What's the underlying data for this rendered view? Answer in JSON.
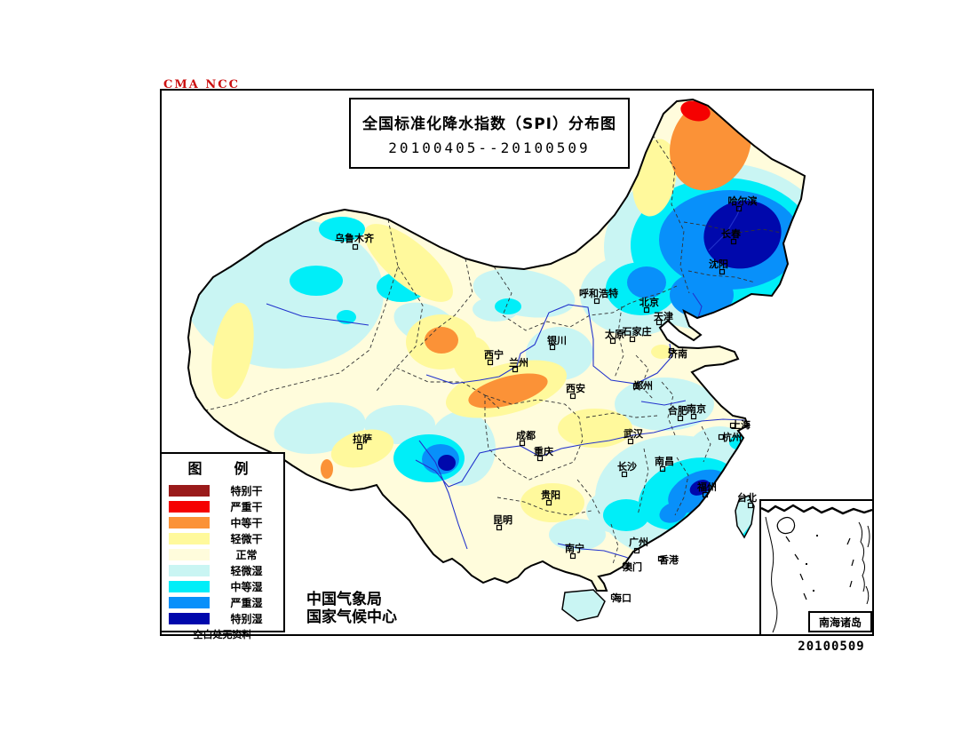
{
  "watermark": "CMA NCC",
  "title": {
    "line1": "全国标准化降水指数（SPI）分布图",
    "line2": "20100405--20100509"
  },
  "agency": {
    "line1": "中国气象局",
    "line2": "国家气候中心"
  },
  "date_stamp": "20100509",
  "inset": {
    "label": "南海诸岛"
  },
  "legend": {
    "title": "图　例",
    "footnote": "空白处无资料",
    "items": [
      {
        "label": "特别干",
        "color_key": "d4"
      },
      {
        "label": "严重干",
        "color_key": "d3"
      },
      {
        "label": "中等干",
        "color_key": "d2"
      },
      {
        "label": "轻微干",
        "color_key": "d1"
      },
      {
        "label": "正常",
        "color_key": "n"
      },
      {
        "label": "轻微湿",
        "color_key": "w1"
      },
      {
        "label": "中等湿",
        "color_key": "w2"
      },
      {
        "label": "严重湿",
        "color_key": "w3"
      },
      {
        "label": "特别湿",
        "color_key": "w4"
      }
    ]
  },
  "map": {
    "colors": {
      "d4": "#9A1A1A",
      "d3": "#F50101",
      "d2": "#FB9237",
      "d1": "#FFF99C",
      "n": "#FFFCDC",
      "w1": "#C9F5F3",
      "w2": "#00EEF8",
      "w3": "#0890FA",
      "w4": "#0008AC"
    },
    "category_names": {
      "d4": "特别干",
      "d3": "严重干",
      "d2": "中等干",
      "d1": "轻微干",
      "n": "正常",
      "w1": "轻微湿",
      "w2": "中等湿",
      "w3": "严重湿",
      "w4": "特别湿"
    },
    "cities": [
      [
        "哈尔滨",
        836,
        226,
        832,
        235
      ],
      [
        "长春",
        823,
        263,
        826,
        272
      ],
      [
        "沈阳",
        809,
        297,
        813,
        306
      ],
      [
        "呼和浩特",
        674,
        330,
        672,
        339
      ],
      [
        "北京",
        731,
        340,
        728,
        349
      ],
      [
        "天津",
        747,
        356,
        742,
        363
      ],
      [
        "石家庄",
        717,
        373,
        712,
        382
      ],
      [
        "太原",
        692,
        376,
        690,
        384
      ],
      [
        "济南",
        763,
        398,
        756,
        395
      ],
      [
        "银川",
        627,
        383,
        622,
        391
      ],
      [
        "西宁",
        556,
        399,
        552,
        408
      ],
      [
        "兰州",
        584,
        408,
        580,
        416
      ],
      [
        "西安",
        648,
        437,
        645,
        446
      ],
      [
        "郑州",
        724,
        434,
        716,
        435
      ],
      [
        "合肥",
        763,
        462,
        766,
        471
      ],
      [
        "南京",
        784,
        460,
        781,
        469
      ],
      [
        "上海",
        834,
        478,
        825,
        479
      ],
      [
        "杭州",
        824,
        492,
        812,
        492
      ],
      [
        "武汉",
        713,
        488,
        710,
        497
      ],
      [
        "南昌",
        748,
        519,
        746,
        528
      ],
      [
        "长沙",
        706,
        525,
        703,
        534
      ],
      [
        "成都",
        592,
        490,
        588,
        499
      ],
      [
        "重庆",
        612,
        508,
        608,
        516
      ],
      [
        "贵阳",
        620,
        557,
        618,
        566
      ],
      [
        "昆明",
        566,
        585,
        562,
        594
      ],
      [
        "拉萨",
        408,
        494,
        405,
        503
      ],
      [
        "乌鲁木齐",
        399,
        268,
        400,
        278
      ],
      [
        "南宁",
        647,
        617,
        645,
        626
      ],
      [
        "广州",
        719,
        610,
        717,
        620
      ],
      [
        "澳门",
        712,
        638,
        704,
        637
      ],
      [
        "香港",
        753,
        630,
        744,
        629
      ],
      [
        "海口",
        700,
        673,
        691,
        672
      ],
      [
        "福州",
        796,
        548,
        794,
        557
      ],
      [
        "台北",
        841,
        560,
        845,
        569
      ]
    ],
    "regions": [
      [
        "w1",
        320,
        330,
        112,
        85,
        0
      ],
      [
        "w1",
        480,
        365,
        38,
        22,
        20
      ],
      [
        "w1",
        590,
        330,
        58,
        26,
        10
      ],
      [
        "w1",
        558,
        348,
        26,
        14,
        0
      ],
      [
        "w1",
        630,
        398,
        38,
        30,
        0
      ],
      [
        "w1",
        360,
        482,
        52,
        28,
        -10
      ],
      [
        "w1",
        450,
        478,
        40,
        22,
        0
      ],
      [
        "w1",
        520,
        505,
        38,
        42,
        0
      ],
      [
        "w1",
        808,
        278,
        128,
        95,
        0
      ],
      [
        "w1",
        715,
        332,
        62,
        46,
        0
      ],
      [
        "w1",
        748,
        455,
        56,
        30,
        0
      ],
      [
        "w1",
        762,
        560,
        92,
        70,
        0
      ],
      [
        "w1",
        810,
        508,
        36,
        28,
        0
      ],
      [
        "w1",
        700,
        575,
        40,
        26,
        0
      ],
      [
        "w1",
        650,
        602,
        32,
        18,
        0
      ],
      [
        "w1",
        652,
        690,
        26,
        13,
        0
      ],
      [
        "w2",
        385,
        258,
        26,
        14,
        0
      ],
      [
        "w2",
        356,
        316,
        30,
        17,
        0
      ],
      [
        "w2",
        390,
        357,
        11,
        8,
        0
      ],
      [
        "w2",
        452,
        323,
        28,
        17,
        0
      ],
      [
        "w2",
        814,
        276,
        104,
        76,
        0
      ],
      [
        "w2",
        722,
        325,
        40,
        30,
        0
      ],
      [
        "w2",
        572,
        345,
        15,
        9,
        0
      ],
      [
        "w2",
        483,
        516,
        40,
        27,
        0
      ],
      [
        "w2",
        775,
        556,
        58,
        38,
        -20
      ],
      [
        "w2",
        705,
        580,
        26,
        18,
        0
      ],
      [
        "w2",
        834,
        498,
        13,
        9,
        0
      ],
      [
        "w3",
        822,
        270,
        80,
        56,
        0
      ],
      [
        "w3",
        790,
        332,
        36,
        26,
        0
      ],
      [
        "w3",
        728,
        318,
        22,
        18,
        0
      ],
      [
        "w3",
        496,
        517,
        21,
        17,
        0
      ],
      [
        "w3",
        786,
        553,
        36,
        21,
        -25
      ],
      [
        "w3",
        758,
        577,
        16,
        11,
        -20
      ],
      [
        "w4",
        836,
        264,
        44,
        38,
        -15
      ],
      [
        "w4",
        503,
        521,
        10,
        9,
        0
      ],
      [
        "w4",
        788,
        549,
        12,
        8,
        -25
      ],
      [
        "d1",
        460,
        296,
        62,
        24,
        40
      ],
      [
        "d1",
        262,
        395,
        22,
        55,
        10
      ],
      [
        "d1",
        737,
        200,
        24,
        44,
        10
      ],
      [
        "d1",
        497,
        385,
        40,
        31,
        0
      ],
      [
        "d1",
        532,
        405,
        22,
        26,
        0
      ],
      [
        "d1",
        570,
        438,
        70,
        28,
        -15
      ],
      [
        "d1",
        408,
        505,
        36,
        20,
        -15
      ],
      [
        "d1",
        670,
        482,
        42,
        22,
        0
      ],
      [
        "d1",
        622,
        566,
        36,
        22,
        0
      ],
      [
        "d1",
        745,
        396,
        12,
        8,
        0
      ],
      [
        "d2",
        800,
        162,
        44,
        54,
        25
      ],
      [
        "d2",
        497,
        383,
        19,
        15,
        0
      ],
      [
        "d2",
        572,
        440,
        46,
        16,
        -15
      ],
      [
        "d2",
        368,
        528,
        7,
        11,
        0
      ],
      [
        "d3",
        783,
        125,
        17,
        11,
        15
      ]
    ]
  }
}
